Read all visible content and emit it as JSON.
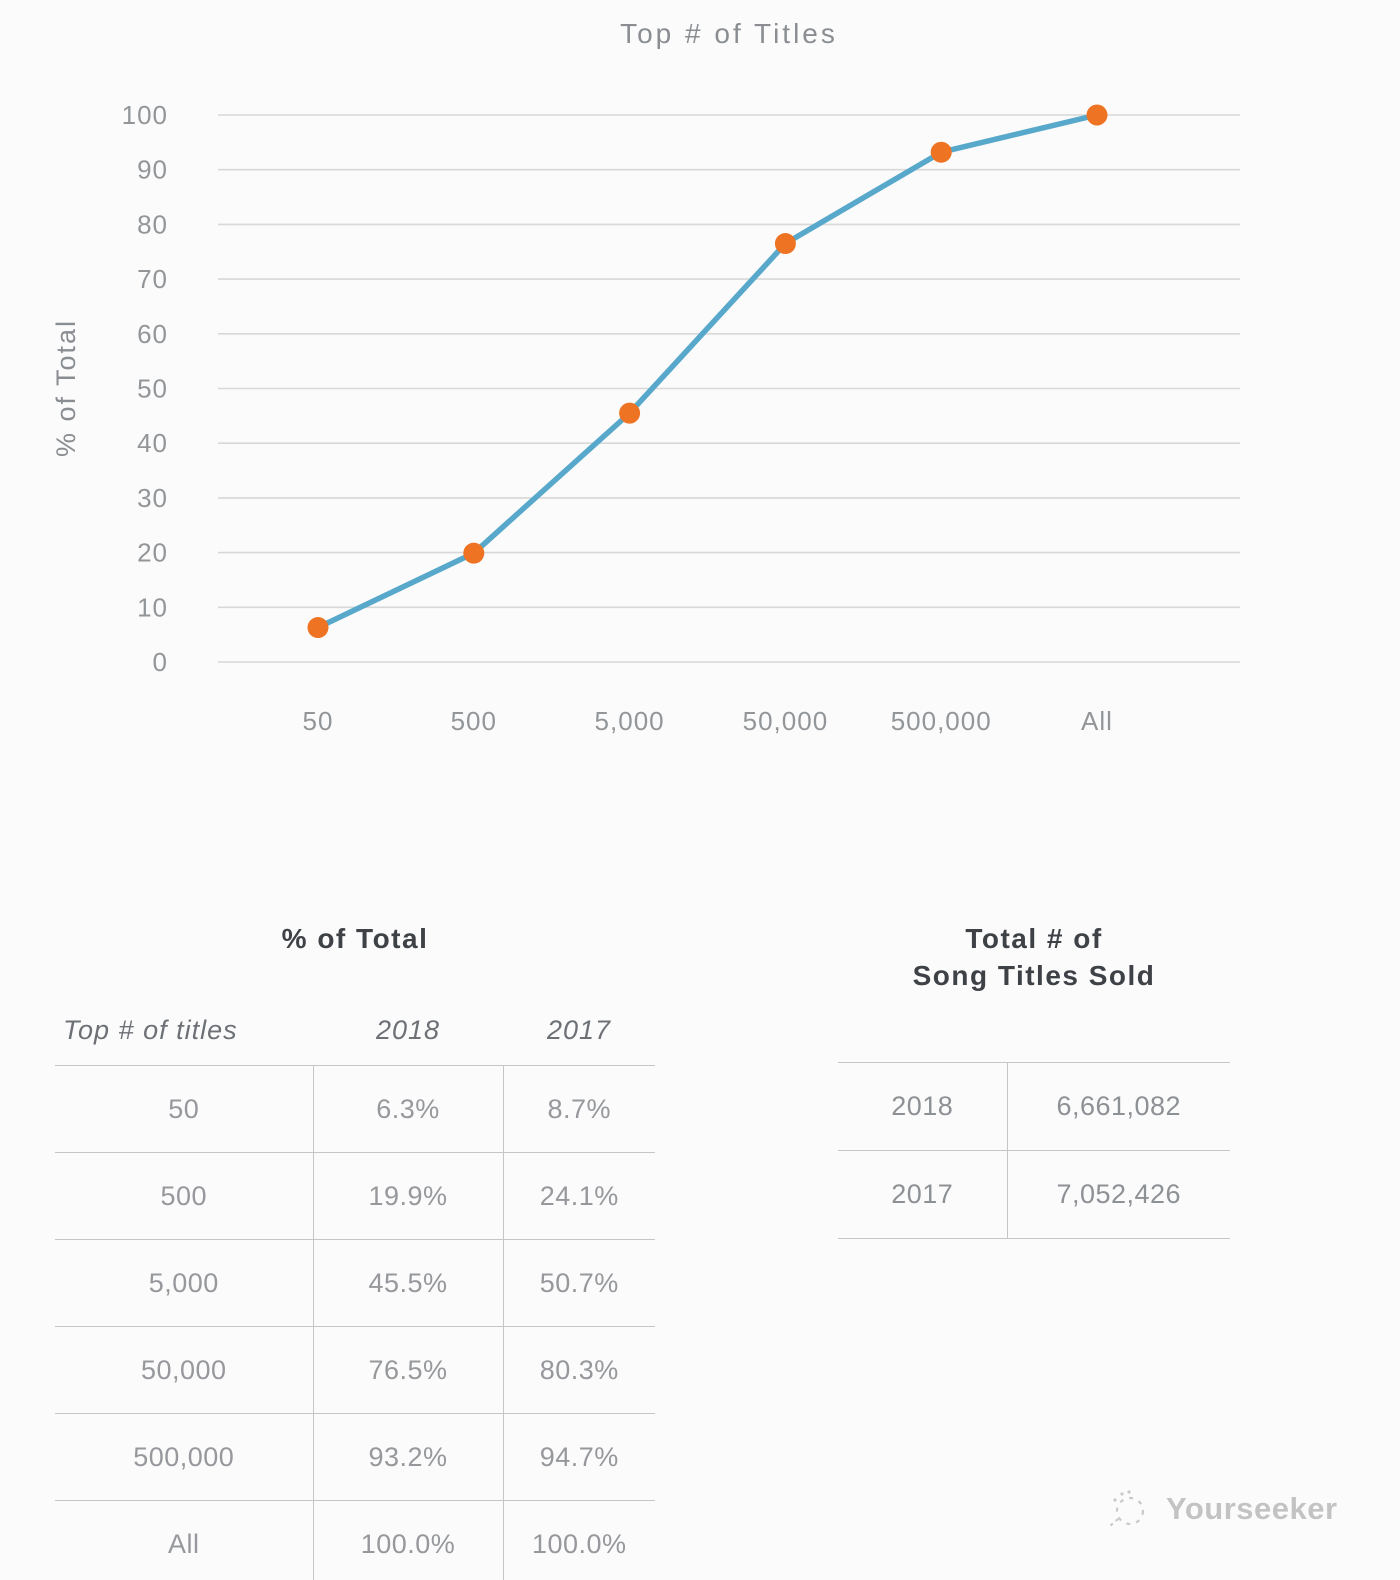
{
  "chart_data": {
    "type": "line",
    "title": "Top # of Titles",
    "ylabel": "% of Total",
    "categories": [
      "50",
      "500",
      "5,000",
      "50,000",
      "500,000",
      "All"
    ],
    "series": [
      {
        "name": "2018",
        "values": [
          6.3,
          19.9,
          45.5,
          76.5,
          93.2,
          100.0
        ]
      }
    ],
    "ylim": [
      0,
      100
    ],
    "ytick_step": 10,
    "grid": true,
    "legend": "none",
    "line_color": "#57a8ca",
    "marker_color": "#ee7424",
    "gridline_color": "#d8d8d8",
    "axis_text_color": "#939699"
  },
  "pct_table": {
    "title": "% of Total",
    "headers": [
      "Top # of titles",
      "2018",
      "2017"
    ],
    "rows": [
      [
        "50",
        "6.3%",
        "8.7%"
      ],
      [
        "500",
        "19.9%",
        "24.1%"
      ],
      [
        "5,000",
        "45.5%",
        "50.7%"
      ],
      [
        "50,000",
        "76.5%",
        "80.3%"
      ],
      [
        "500,000",
        "93.2%",
        "94.7%"
      ],
      [
        "All",
        "100.0%",
        "100.0%"
      ]
    ]
  },
  "totals_table": {
    "title_line1": "Total # of",
    "title_line2": "Song Titles Sold",
    "rows": [
      [
        "2018",
        "6,661,082"
      ],
      [
        "2017",
        "7,052,426"
      ]
    ]
  },
  "watermark": {
    "label": "Yourseeker",
    "icon": "dashed-circle-logo-icon"
  }
}
